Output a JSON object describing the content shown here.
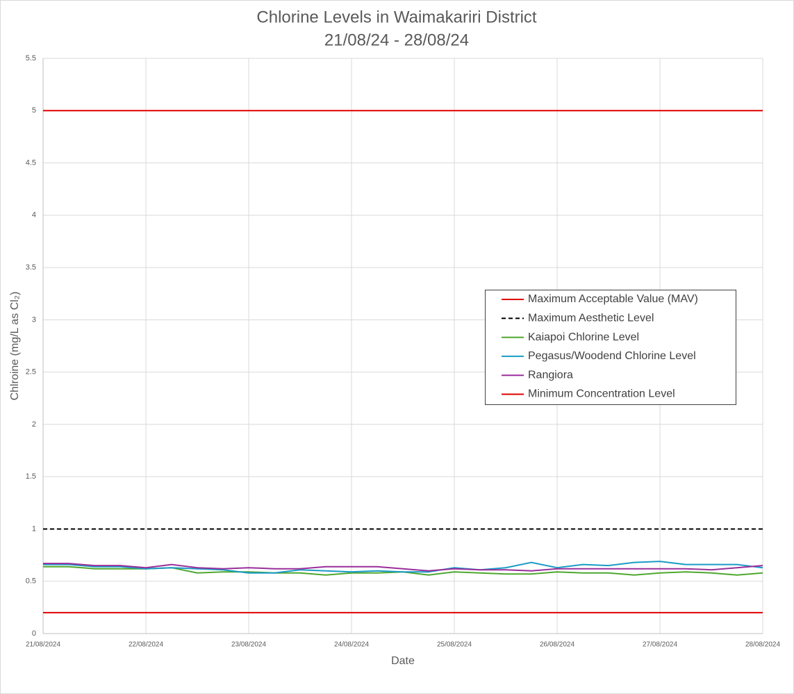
{
  "chart_data": {
    "type": "line",
    "title": "Chlorine Levels in Waimakariri District",
    "subtitle": "21/08/24 - 28/08/24",
    "x_label": "Date",
    "y_label": "Chlroine (mg/L as Cl₂)",
    "x": [
      0,
      0.25,
      0.5,
      0.75,
      1,
      1.25,
      1.5,
      1.75,
      2,
      2.25,
      2.5,
      2.75,
      3,
      3.25,
      3.5,
      3.75,
      4,
      4.25,
      4.5,
      4.75,
      5,
      5.25,
      5.5,
      5.75,
      6,
      6.25,
      6.5,
      6.75,
      7
    ],
    "xlim": [
      0,
      7
    ],
    "xticks": [
      {
        "value": 0,
        "label": "21/08/2024"
      },
      {
        "value": 1,
        "label": "22/08/2024"
      },
      {
        "value": 2,
        "label": "23/08/2024"
      },
      {
        "value": 3,
        "label": "24/08/2024"
      },
      {
        "value": 4,
        "label": "25/08/2024"
      },
      {
        "value": 5,
        "label": "26/08/2024"
      },
      {
        "value": 6,
        "label": "27/08/2024"
      },
      {
        "value": 7,
        "label": "28/08/2024"
      }
    ],
    "ylim": [
      0,
      5.5
    ],
    "yticks": [
      0,
      0.5,
      1,
      1.5,
      2,
      2.5,
      3,
      3.5,
      4,
      4.5,
      5,
      5.5
    ],
    "grid": true,
    "legend": "right",
    "series": [
      {
        "name": "Maximum Acceptable Value (MAV)",
        "color": "#e00000",
        "style": "solid",
        "values": [
          5,
          5,
          5,
          5,
          5,
          5,
          5,
          5,
          5,
          5,
          5,
          5,
          5,
          5,
          5,
          5,
          5,
          5,
          5,
          5,
          5,
          5,
          5,
          5,
          5,
          5,
          5,
          5,
          5
        ]
      },
      {
        "name": "Maximum Aesthetic Level",
        "color": "#000000",
        "style": "dashed",
        "values": [
          1,
          1,
          1,
          1,
          1,
          1,
          1,
          1,
          1,
          1,
          1,
          1,
          1,
          1,
          1,
          1,
          1,
          1,
          1,
          1,
          1,
          1,
          1,
          1,
          1,
          1,
          1,
          1,
          1
        ]
      },
      {
        "name": "Kaiapoi Chlorine Level",
        "color": "#4ea72e",
        "style": "solid",
        "values": [
          0.64,
          0.64,
          0.62,
          0.62,
          0.62,
          0.63,
          0.58,
          0.59,
          0.59,
          0.58,
          0.58,
          0.56,
          0.58,
          0.58,
          0.59,
          0.56,
          0.59,
          0.58,
          0.57,
          0.57,
          0.59,
          0.58,
          0.58,
          0.56,
          0.58,
          0.59,
          0.58,
          0.56,
          0.58
        ]
      },
      {
        "name": "Pegasus/Woodend Chlorine Level",
        "color": "#1a9bc6",
        "style": "solid",
        "values": [
          0.66,
          0.66,
          0.64,
          0.64,
          0.62,
          0.63,
          0.62,
          0.61,
          0.58,
          0.58,
          0.61,
          0.6,
          0.59,
          0.6,
          0.59,
          0.59,
          0.63,
          0.61,
          0.63,
          0.68,
          0.63,
          0.66,
          0.65,
          0.68,
          0.69,
          0.66,
          0.66,
          0.66,
          0.63
        ]
      },
      {
        "name": "Rangiora",
        "color": "#9a2e9a",
        "style": "solid",
        "values": [
          0.67,
          0.67,
          0.65,
          0.65,
          0.63,
          0.66,
          0.63,
          0.62,
          0.63,
          0.62,
          0.62,
          0.64,
          0.64,
          0.64,
          0.62,
          0.6,
          0.62,
          0.61,
          0.61,
          0.6,
          0.62,
          0.62,
          0.62,
          0.62,
          0.62,
          0.62,
          0.61,
          0.63,
          0.65
        ]
      },
      {
        "name": "Minimum Concentration Level",
        "color": "#e00000",
        "style": "solid",
        "values": [
          0.2,
          0.2,
          0.2,
          0.2,
          0.2,
          0.2,
          0.2,
          0.2,
          0.2,
          0.2,
          0.2,
          0.2,
          0.2,
          0.2,
          0.2,
          0.2,
          0.2,
          0.2,
          0.2,
          0.2,
          0.2,
          0.2,
          0.2,
          0.2,
          0.2,
          0.2,
          0.2,
          0.2,
          0.2
        ]
      }
    ]
  }
}
